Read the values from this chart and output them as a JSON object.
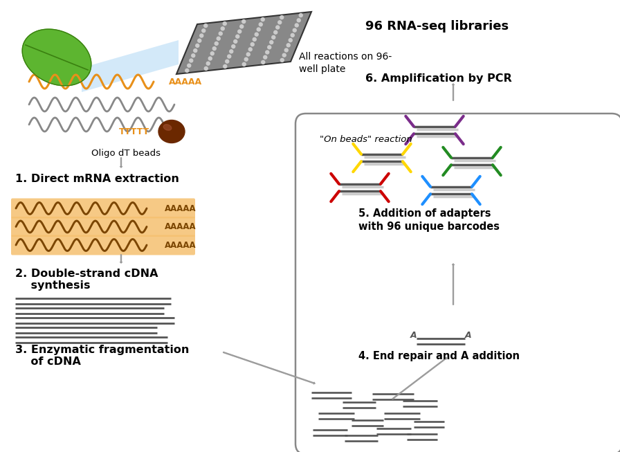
{
  "bg_color": "#ffffff",
  "orange_color": "#E8901A",
  "orange_bg": "#F5C070",
  "orange_dark": "#7B4500",
  "gray_line": "#555555",
  "gray_arrow": "#aaaaaa",
  "step1": "1. Direct mRNA extraction",
  "step2": "2. Double-strand cDNA\n    synthesis",
  "step3": "3. Enzymatic fragmentation\n    of cDNA",
  "step4": "4. End repair and A addition",
  "step5": "5. Addition of adapters\nwith 96 unique barcodes",
  "step6": "6. Amplification by PCR",
  "step7": "96 RNA-seq libraries",
  "plate_label": "All reactions on 96-\nwell plate",
  "beads_label": "Oligo dT beads",
  "onbeads": "\"On beads\" reaction",
  "adapter_colors": [
    "#CC0000",
    "#1E8FFF",
    "#FFD700",
    "#228B22",
    "#7B2D8B"
  ],
  "fig_w": 8.96,
  "fig_h": 6.53
}
